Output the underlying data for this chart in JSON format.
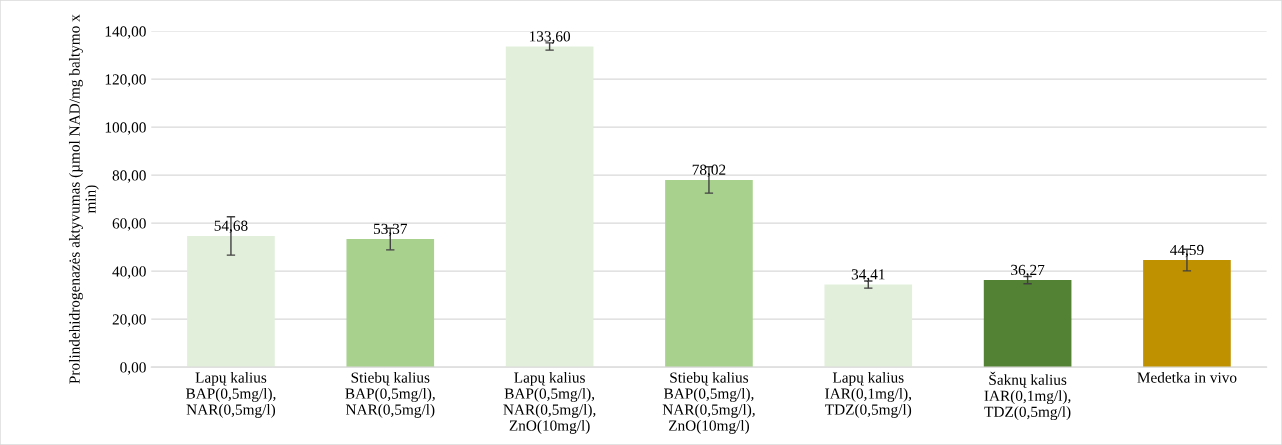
{
  "chart_data": {
    "type": "bar",
    "ylabel": "Prolindehidrogenazės aktyvumas (µmol NAD/mg baltymo x min)",
    "categories": [
      "Lapų kalius\nBAP(0,5mg/l),\nNAR(0,5mg/l)",
      "Stiebų kalius\nBAP(0,5mg/l),\nNAR(0,5mg/l)",
      "Lapų kalius\nBAP(0,5mg/l),\nNAR(0,5mg/l),\nZnO(10mg/l)",
      "Stiebų kalius\nBAP(0,5mg/l),\nNAR(0,5mg/l),\nZnO(10mg/l)",
      "Lapų kalius\nIAR(0,1mg/l),\nTDZ(0,5mg/l)",
      "Šaknų kalius\nIAR(0,1mg/l),\nTDZ(0,5mg/l)",
      "Medetka in vivo"
    ],
    "values": [
      54.68,
      53.37,
      133.6,
      78.02,
      34.41,
      36.27,
      44.59
    ],
    "errors": [
      8,
      4.5,
      1.5,
      5.5,
      1.5,
      1.5,
      4.5
    ],
    "value_labels": [
      "54,68",
      "53,37",
      "133,60",
      "78,02",
      "34,41",
      "36,27",
      "44,59"
    ],
    "colors": [
      "#e2efda",
      "#a9d18e",
      "#e2efda",
      "#a9d18e",
      "#e2efda",
      "#548235",
      "#bf9000"
    ],
    "ylim": [
      0,
      140
    ],
    "yticks": [
      {
        "value": 0,
        "label": "0,00"
      },
      {
        "value": 20,
        "label": "20,00"
      },
      {
        "value": 40,
        "label": "40,00"
      },
      {
        "value": 60,
        "label": "60,00"
      },
      {
        "value": 80,
        "label": "80,00"
      },
      {
        "value": 100,
        "label": "100,00"
      },
      {
        "value": 120,
        "label": "120,00"
      },
      {
        "value": 140,
        "label": "140,00"
      }
    ],
    "grid": "y"
  }
}
